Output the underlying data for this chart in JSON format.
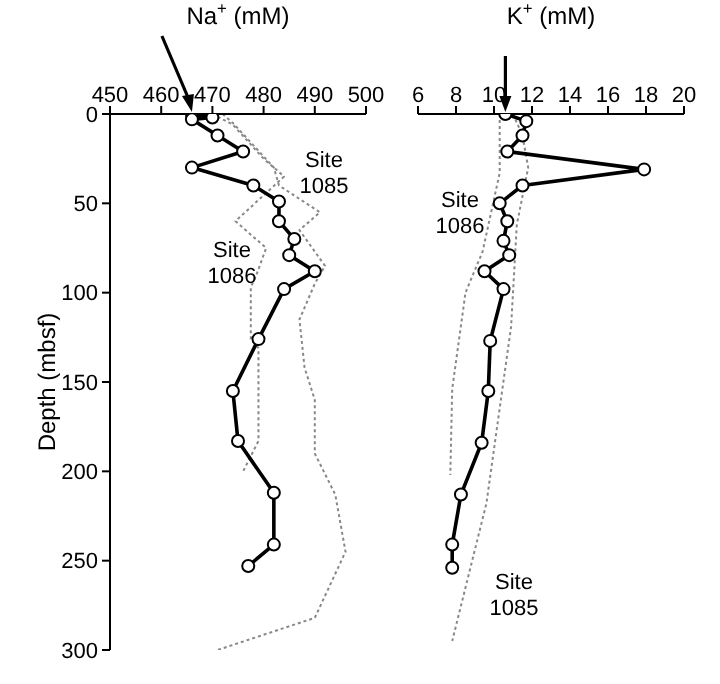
{
  "chart_data": [
    {
      "type": "line",
      "xlabel": "Na$^{+}$ (mM)",
      "ylabel": "Depth (mbsf)",
      "xlim": [
        450,
        500
      ],
      "xticks": [
        450,
        460,
        470,
        480,
        490,
        500
      ],
      "ylim": [
        300,
        0
      ],
      "yticks": [
        0,
        50,
        100,
        150,
        200,
        250,
        300
      ],
      "grid": false,
      "legend": false,
      "series": [
        {
          "name": "Site 1085",
          "color": "#888888",
          "line_style": "dotted",
          "marker": "none",
          "x": [
            472,
            474,
            482,
            483,
            491,
            487,
            492,
            490,
            487,
            488,
            490,
            490,
            494,
            496,
            490,
            471
          ],
          "values": [
            0,
            5,
            30,
            40,
            55,
            65,
            85,
            95,
            115,
            142,
            160,
            190,
            213,
            245,
            282,
            300
          ]
        },
        {
          "name": "Site 1086",
          "color": "#888888",
          "line_style": "dotted",
          "marker": "none",
          "x": [
            470,
            474,
            480,
            484,
            474.5,
            480.5,
            478.6,
            477.5,
            477.5,
            479,
            479,
            476
          ],
          "values": [
            0,
            6,
            25,
            35,
            60,
            75,
            90,
            97,
            126,
            131,
            183,
            200
          ]
        },
        {
          "color": "#000000",
          "line_style": "solid",
          "marker": "circle",
          "x": [
            466,
            470,
            466,
            471,
            476,
            466,
            478,
            483,
            483,
            486,
            485,
            490,
            484,
            479,
            474,
            475,
            482,
            482,
            477
          ],
          "values": [
            0,
            2,
            3,
            12,
            21,
            30,
            40,
            49,
            60,
            70,
            79,
            88,
            98,
            126,
            155,
            183,
            212,
            241,
            253
          ]
        }
      ]
    },
    {
      "type": "line",
      "xlabel": "K$^{+}$ (mM)",
      "xlim": [
        6,
        20
      ],
      "xticks": [
        6,
        8,
        10,
        12,
        14,
        16,
        18,
        20
      ],
      "ylim": [
        300,
        0
      ],
      "yticks": [
        0,
        50,
        100,
        150,
        200,
        250,
        300
      ],
      "tick_labels": "x",
      "grid": false,
      "legend": false,
      "series": [
        {
          "name": "Site 1085",
          "color": "#888888",
          "line_style": "dotted",
          "marker": "none",
          "x": [
            11,
            11.5,
            11.8,
            11.2,
            11,
            10.9,
            9.6,
            7.8
          ],
          "values": [
            0,
            12,
            30,
            62,
            100,
            119,
            218,
            295
          ]
        },
        {
          "name": "Site 1086",
          "color": "#888888",
          "line_style": "dotted",
          "marker": "none",
          "x": [
            10.3,
            10.3,
            9.4,
            8.5,
            7.8,
            7.7
          ],
          "values": [
            0,
            33,
            77,
            100,
            154,
            202
          ]
        },
        {
          "color": "#000000",
          "line_style": "solid",
          "marker": "circle",
          "x": [
            10.6,
            11.7,
            11.5,
            10.7,
            17.9,
            11.5,
            10.3,
            10.7,
            10.5,
            10.8,
            9.5,
            10.5,
            9.8,
            9.7,
            9.35,
            8.26,
            7.8,
            7.8
          ],
          "values": [
            0,
            4,
            12,
            21,
            31,
            40,
            50,
            60,
            71,
            79,
            88,
            98,
            127,
            155,
            184,
            213,
            241,
            254
          ]
        }
      ]
    }
  ]
}
